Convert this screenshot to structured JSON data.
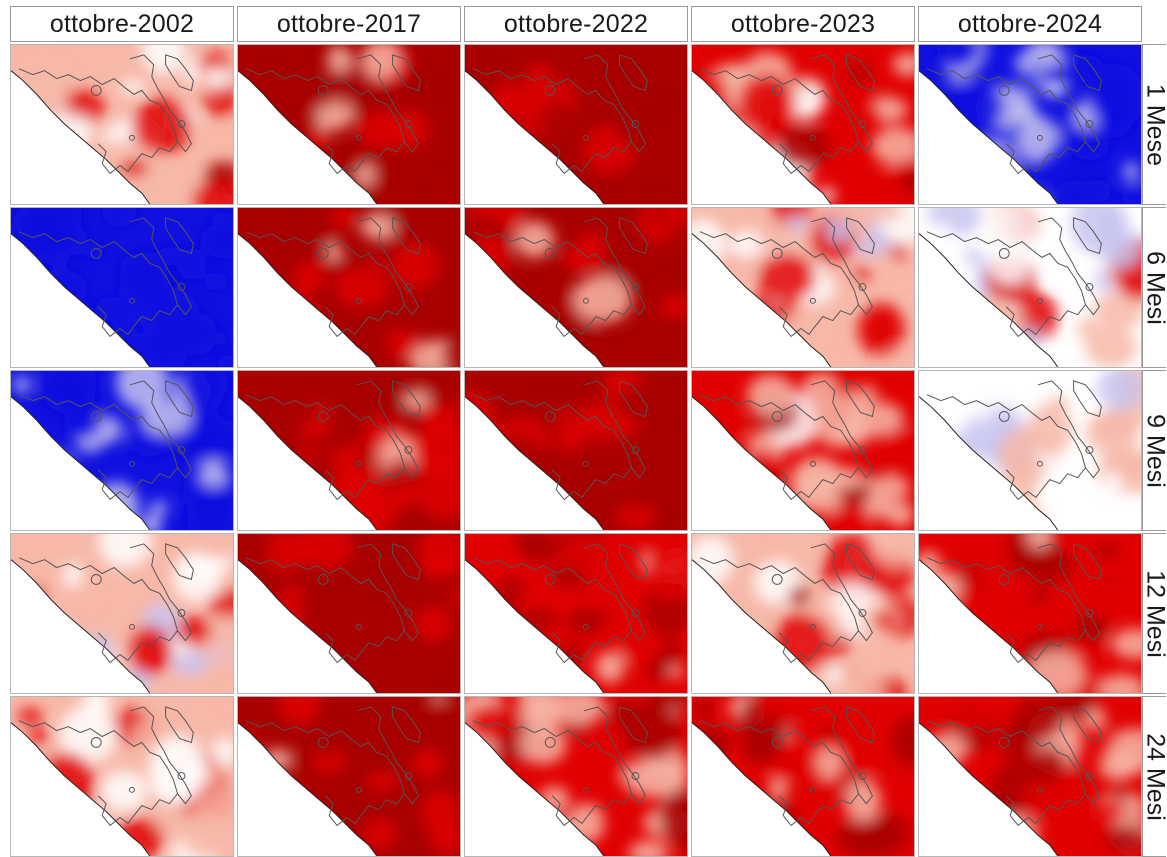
{
  "columns": [
    {
      "label": "ottobre-2002",
      "key": "2002"
    },
    {
      "label": "ottobre-2017",
      "key": "2017"
    },
    {
      "label": "ottobre-2022",
      "key": "2022"
    },
    {
      "label": "ottobre-2023",
      "key": "2023"
    },
    {
      "label": "ottobre-2024",
      "key": "2024"
    }
  ],
  "rows": [
    {
      "label": "1 Mese",
      "key": "1m"
    },
    {
      "label": "6 Mesi",
      "key": "6m"
    },
    {
      "label": "9 Mesi",
      "key": "9m"
    },
    {
      "label": "12 Mesi",
      "key": "12m"
    },
    {
      "label": "24 Mesi",
      "key": "24m"
    }
  ],
  "colors": {
    "strong_red": "#a80000",
    "red": "#e00000",
    "light_red": "#f7b8a8",
    "neutral": "#ffffff",
    "light_blue": "#c8c4f0",
    "blue": "#1010e0",
    "boundary": "#555555"
  },
  "panel_tone": {
    "2002": {
      "1m": 0.35,
      "6m": -0.95,
      "9m": -0.55,
      "12m": 0.15,
      "24m": 0.3
    },
    "2017": {
      "1m": 0.85,
      "6m": 0.8,
      "9m": 0.85,
      "12m": 0.9,
      "24m": 0.8
    },
    "2022": {
      "1m": 0.92,
      "6m": 0.8,
      "9m": 0.88,
      "12m": 0.65,
      "24m": 0.6
    },
    "2023": {
      "1m": 0.5,
      "6m": 0.25,
      "9m": 0.55,
      "12m": 0.4,
      "24m": 0.7
    },
    "2024": {
      "1m": -0.5,
      "6m": 0.05,
      "9m": 0.05,
      "12m": 0.6,
      "24m": 0.6
    }
  }
}
